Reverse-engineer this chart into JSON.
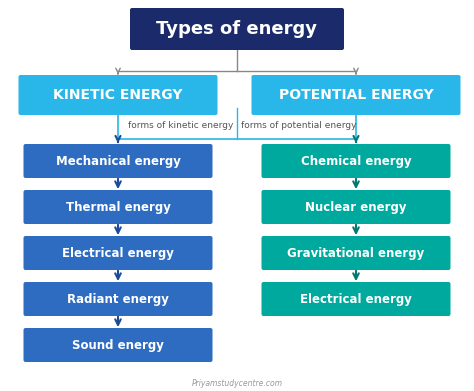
{
  "title": "Types of energy",
  "title_box_color": "#1b2a6b",
  "title_text_color": "#ffffff",
  "kinetic_label": "KINETIC ENERGY",
  "potential_label": "POTENTIAL ENERGY",
  "header_box_color": "#29b6e8",
  "header_text_color": "#ffffff",
  "forms_kinetic": "forms of kinetic energy",
  "forms_potential": "forms of potential energy",
  "kinetic_items": [
    "Mechanical energy",
    "Thermal energy",
    "Electrical energy",
    "Radiant energy",
    "Sound energy"
  ],
  "kinetic_box_color": "#2d6cc0",
  "potential_items": [
    "Chemical energy",
    "Nuclear energy",
    "Gravitational energy",
    "Electrical energy"
  ],
  "potential_box_color": "#00a99d",
  "item_text_color": "#ffffff",
  "line_color": "#888888",
  "arrow_color_left": "#1a4a9a",
  "arrow_color_right": "#007a70",
  "watermark": "Priyamstudycentre.com",
  "background_color": "#ffffff"
}
